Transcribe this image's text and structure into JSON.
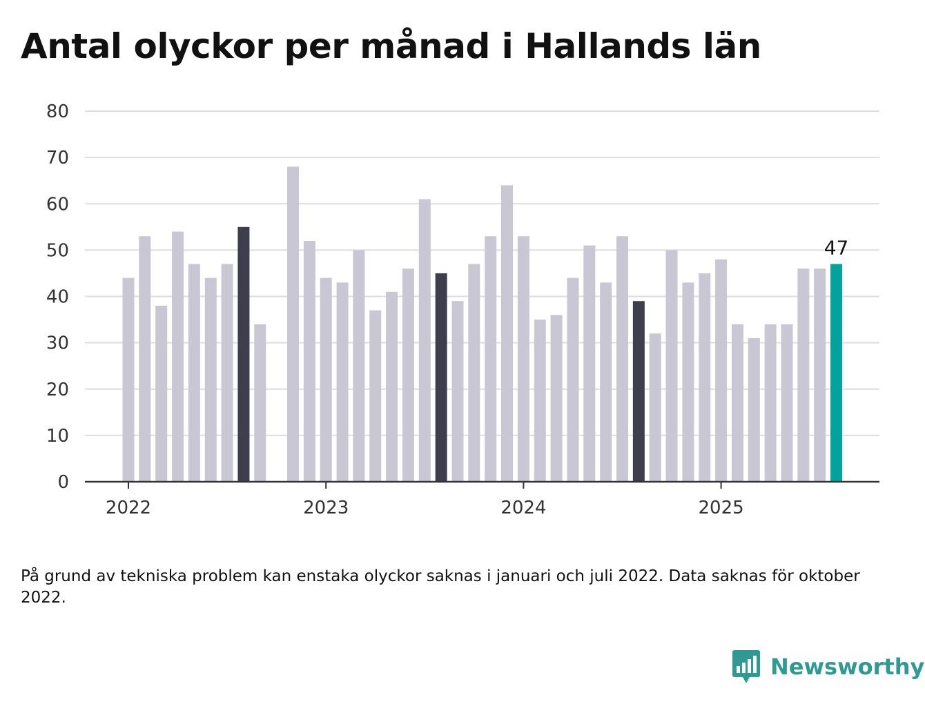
{
  "title": "Antal olyckor per månad i Hallands län",
  "footnote": "På grund av tekniska problem kan enstaka olyckor saknas i januari och juli 2022. Data saknas för oktober 2022.",
  "brand": {
    "name": "Newsworthy",
    "icon": "newsworthy-logo-icon",
    "color": "#2e9a93"
  },
  "colors": {
    "default": "#c8c7d3",
    "august": "#3f3e4e",
    "latest": "#00a49c",
    "grid": "#dddddd",
    "axis": "#333333"
  },
  "chart_data": {
    "type": "bar",
    "title": "Antal olyckor per månad i Hallands län",
    "xlabel": "",
    "ylabel": "",
    "ylim": [
      0,
      80
    ],
    "yticks": [
      0,
      10,
      20,
      30,
      40,
      50,
      60,
      70,
      80
    ],
    "xticks": [
      {
        "label": "2022",
        "date": "2022-01"
      },
      {
        "label": "2023",
        "date": "2023-01"
      },
      {
        "label": "2024",
        "date": "2024-01"
      },
      {
        "label": "2025",
        "date": "2025-01"
      }
    ],
    "grid": true,
    "x": [
      "2022-01",
      "2022-02",
      "2022-03",
      "2022-04",
      "2022-05",
      "2022-06",
      "2022-07",
      "2022-08",
      "2022-09",
      "2022-10",
      "2022-11",
      "2022-12",
      "2023-01",
      "2023-02",
      "2023-03",
      "2023-04",
      "2023-05",
      "2023-06",
      "2023-07",
      "2023-08",
      "2023-09",
      "2023-10",
      "2023-11",
      "2023-12",
      "2024-01",
      "2024-02",
      "2024-03",
      "2024-04",
      "2024-05",
      "2024-06",
      "2024-07",
      "2024-08",
      "2024-09",
      "2024-10",
      "2024-11",
      "2024-12",
      "2025-01",
      "2025-02",
      "2025-03",
      "2025-04",
      "2025-05",
      "2025-06",
      "2025-07",
      "2025-08"
    ],
    "values": [
      44,
      53,
      38,
      54,
      47,
      44,
      47,
      55,
      34,
      null,
      68,
      52,
      44,
      43,
      50,
      37,
      41,
      46,
      61,
      45,
      39,
      47,
      53,
      64,
      53,
      35,
      36,
      44,
      51,
      43,
      53,
      39,
      32,
      50,
      43,
      45,
      48,
      34,
      31,
      34,
      34,
      46,
      46,
      47
    ],
    "highlight": {
      "august": [
        "2022-08",
        "2023-08",
        "2024-08"
      ],
      "latest": "2025-08"
    },
    "data_labels": [
      {
        "x": "2025-08",
        "text": "47"
      }
    ]
  }
}
